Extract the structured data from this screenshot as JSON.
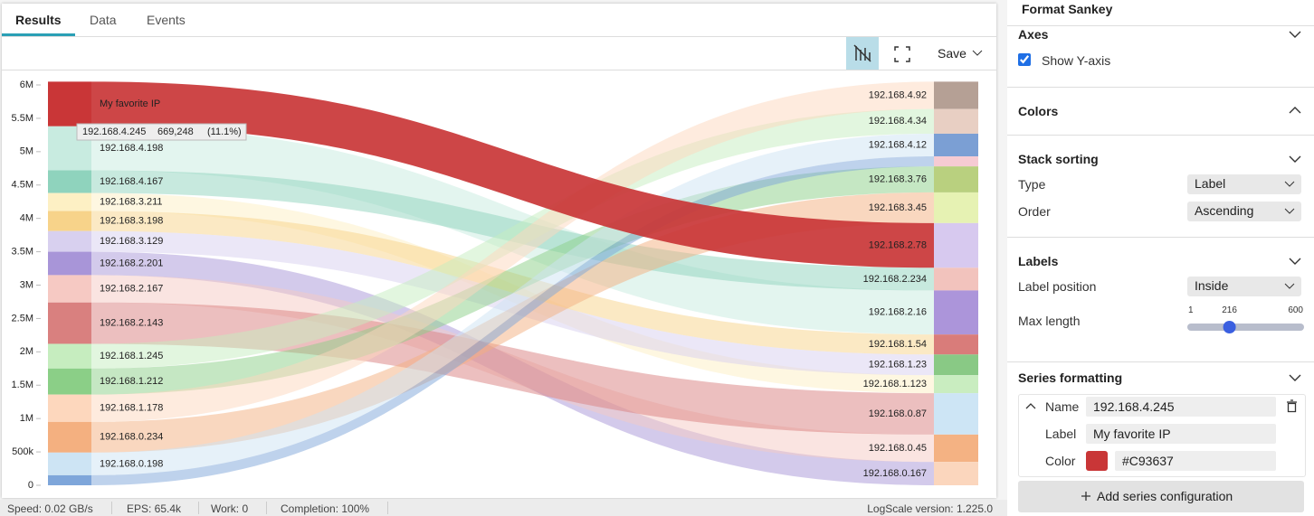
{
  "tabs": [
    "Results",
    "Data",
    "Events"
  ],
  "toolbar": {
    "save": "Save"
  },
  "chart_data": {
    "type": "sankey",
    "show_y_axis": true,
    "ylim": [
      0,
      6000000
    ],
    "yticks": [
      0,
      {
        "value": 500000,
        "label": "500k"
      },
      {
        "value": 1000000,
        "label": "1M"
      },
      {
        "value": 1500000,
        "label": "1.5M"
      },
      {
        "value": 2000000,
        "label": "2M"
      },
      {
        "value": 2500000,
        "label": "2.5M"
      },
      {
        "value": 3000000,
        "label": "3M"
      },
      {
        "value": 3500000,
        "label": "3.5M"
      },
      {
        "value": 4000000,
        "label": "4M"
      },
      {
        "value": 4500000,
        "label": "4.5M"
      },
      {
        "value": 5000000,
        "label": "5M"
      },
      {
        "value": 5500000,
        "label": "5.5M"
      },
      {
        "value": 6000000,
        "label": "6M"
      }
    ],
    "left_nodes": [
      {
        "label": "My favorite IP",
        "color": "#C93637"
      },
      {
        "label": "192.168.4.198",
        "color": "#c8ebe0"
      },
      {
        "label": "192.168.4.167",
        "color": "#8fd3bd"
      },
      {
        "label": "192.168.3.211",
        "color": "#fdf0c4"
      },
      {
        "label": "192.168.3.198",
        "color": "#f7d38a"
      },
      {
        "label": "192.168.3.129",
        "color": "#d8d0ef"
      },
      {
        "label": "192.168.2.201",
        "color": "#a895d8"
      },
      {
        "label": "192.168.2.167",
        "color": "#f6c9c3"
      },
      {
        "label": "192.168.2.143",
        "color": "#d9807f"
      },
      {
        "label": "192.168.1.245",
        "color": "#c6edbf"
      },
      {
        "label": "192.168.1.212",
        "color": "#8bcf87"
      },
      {
        "label": "192.168.1.178",
        "color": "#fdd7bd"
      },
      {
        "label": "192.168.0.234",
        "color": "#f4b080"
      },
      {
        "label": "192.168.0.198",
        "color": "#cde4f4"
      },
      {
        "label": null,
        "color": "#7ea6da"
      }
    ],
    "right_nodes": [
      {
        "label": "192.168.4.92",
        "color": "#b5a095"
      },
      {
        "label": "192.168.4.34",
        "color": "#e8cfc3"
      },
      {
        "label": "192.168.4.12",
        "color": "#7b9fd4"
      },
      {
        "label": null,
        "color": "#f6cbd3"
      },
      {
        "label": "192.168.3.76",
        "color": "#b9d07f"
      },
      {
        "label": "192.168.3.45",
        "color": "#e6f2b3"
      },
      {
        "label": "192.168.2.78",
        "color": "#d7c9ef"
      },
      {
        "label": "192.168.2.234",
        "color": "#f2c3bd"
      },
      {
        "label": "192.168.2.16",
        "color": "#ac95da"
      },
      {
        "label": "192.168.1.54",
        "color": "#d97c7a"
      },
      {
        "label": "192.168.1.23",
        "color": "#89c985"
      },
      {
        "label": "192.168.1.123",
        "color": "#c9edc0"
      },
      {
        "label": "192.168.0.87",
        "color": "#cde5f5"
      },
      {
        "label": "192.168.0.45",
        "color": "#f4b283"
      },
      {
        "label": "192.168.0.167",
        "color": "#fbd6bd"
      }
    ],
    "links": [
      {
        "source": 0,
        "target": 6,
        "value": 669248
      },
      {
        "source": 1,
        "target": 8,
        "value": 660000
      },
      {
        "source": 2,
        "target": 7,
        "value": 340000
      },
      {
        "source": 3,
        "target": 11,
        "value": 270000
      },
      {
        "source": 4,
        "target": 9,
        "value": 300000
      },
      {
        "source": 5,
        "target": 10,
        "value": 310000
      },
      {
        "source": 6,
        "target": 14,
        "value": 350000
      },
      {
        "source": 7,
        "target": 13,
        "value": 410000
      },
      {
        "source": 8,
        "target": 12,
        "value": 620000
      },
      {
        "source": 9,
        "target": 1,
        "value": 370000
      },
      {
        "source": 10,
        "target": 4,
        "value": 390000
      },
      {
        "source": 11,
        "target": 0,
        "value": 410000
      },
      {
        "source": 12,
        "target": 5,
        "value": 460000
      },
      {
        "source": 13,
        "target": 2,
        "value": 340000
      },
      {
        "source": 14,
        "target": 3,
        "value": 150000
      }
    ]
  },
  "tooltip": {
    "name": "192.168.4.245",
    "value": "669,248",
    "percent": "(11.1%)"
  },
  "status_bar": {
    "speed": "Speed: 0.02 GB/s",
    "eps": "EPS: 65.4k",
    "work": "Work: 0",
    "completion": "Completion: 100%",
    "version": "LogScale version: 1.225.0"
  },
  "panel": {
    "title": "Format Sankey",
    "axes": {
      "title": "Axes",
      "show_y_axis": "Show Y-axis"
    },
    "colors": {
      "title": "Colors"
    },
    "stack_sorting": {
      "title": "Stack sorting",
      "type_label": "Type",
      "type_value": "Label",
      "order_label": "Order",
      "order_value": "Ascending"
    },
    "labels": {
      "title": "Labels",
      "position_label": "Label position",
      "position_value": "Inside",
      "max_length_label": "Max length",
      "max_length": {
        "min": 1,
        "value": 216,
        "max": 600
      }
    },
    "series_formatting": {
      "title": "Series formatting",
      "name_label": "Name",
      "name_value": "192.168.4.245",
      "label_label": "Label",
      "label_value": "My favorite IP",
      "color_label": "Color",
      "color_value": "#C93637"
    },
    "add_button": "Add series configuration"
  }
}
